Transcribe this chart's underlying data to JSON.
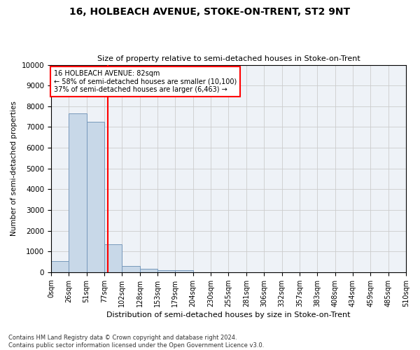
{
  "title": "16, HOLBEACH AVENUE, STOKE-ON-TRENT, ST2 9NT",
  "subtitle": "Size of property relative to semi-detached houses in Stoke-on-Trent",
  "xlabel": "Distribution of semi-detached houses by size in Stoke-on-Trent",
  "ylabel": "Number of semi-detached properties",
  "footnote": "Contains HM Land Registry data © Crown copyright and database right 2024.\nContains public sector information licensed under the Open Government Licence v3.0.",
  "bar_labels": [
    "0sqm",
    "26sqm",
    "51sqm",
    "77sqm",
    "102sqm",
    "128sqm",
    "153sqm",
    "179sqm",
    "204sqm",
    "230sqm",
    "255sqm",
    "281sqm",
    "306sqm",
    "332sqm",
    "357sqm",
    "383sqm",
    "408sqm",
    "434sqm",
    "459sqm",
    "485sqm",
    "510sqm"
  ],
  "bar_values": [
    550,
    7650,
    7250,
    1350,
    300,
    150,
    100,
    80,
    0,
    0,
    0,
    0,
    0,
    0,
    0,
    0,
    0,
    0,
    0,
    0
  ],
  "bar_color": "#c8d8e8",
  "bar_edge_color": "#7799bb",
  "grid_color": "#cccccc",
  "property_line_x": 82,
  "annotation_line1": "16 HOLBEACH AVENUE: 82sqm",
  "annotation_line2": "← 58% of semi-detached houses are smaller (10,100)",
  "annotation_line3": "37% of semi-detached houses are larger (6,463) →",
  "annotation_box_color": "white",
  "annotation_box_edge": "red",
  "red_line_color": "red",
  "ylim": [
    0,
    10000
  ],
  "background_color": "#eef2f7"
}
